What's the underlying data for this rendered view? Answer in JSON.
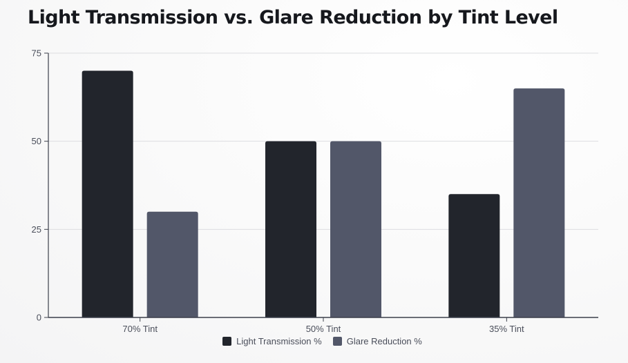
{
  "chart_data": {
    "type": "bar",
    "title": "Light Transmission vs. Glare Reduction by Tint Level",
    "categories": [
      "70% Tint",
      "50% Tint",
      "35% Tint"
    ],
    "series": [
      {
        "name": "Light Transmission %",
        "values": [
          70,
          50,
          35
        ],
        "color": "#22252c"
      },
      {
        "name": "Glare Reduction %",
        "values": [
          30,
          50,
          65
        ],
        "color": "#525769"
      }
    ],
    "xlabel": "",
    "ylabel": "",
    "ylim": [
      0,
      75
    ],
    "yticks": [
      0,
      25,
      50,
      75
    ],
    "grid": true,
    "legend_position": "bottom"
  }
}
